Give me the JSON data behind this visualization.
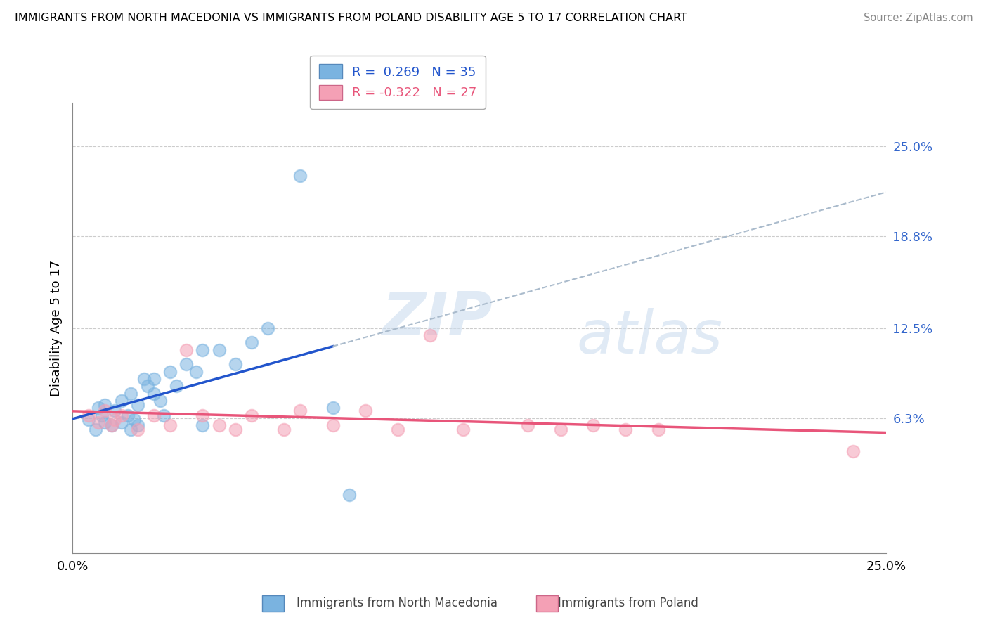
{
  "title": "IMMIGRANTS FROM NORTH MACEDONIA VS IMMIGRANTS FROM POLAND DISABILITY AGE 5 TO 17 CORRELATION CHART",
  "source": "Source: ZipAtlas.com",
  "ylabel": "Disability Age 5 to 17",
  "xlim": [
    0.0,
    0.25
  ],
  "ylim": [
    -0.03,
    0.28
  ],
  "ytick_labels": [
    "6.3%",
    "12.5%",
    "18.8%",
    "25.0%"
  ],
  "ytick_values": [
    0.063,
    0.125,
    0.188,
    0.25
  ],
  "r_mac": 0.269,
  "n_mac": 35,
  "r_pol": -0.322,
  "n_pol": 27,
  "color_mac": "#7ab3e0",
  "color_pol": "#f4a0b5",
  "line_color_mac": "#2255cc",
  "line_color_pol": "#e8557a",
  "watermark": "ZIPatlas",
  "background_color": "#ffffff",
  "grid_color": "#cccccc",
  "mac_scatter_x": [
    0.005,
    0.007,
    0.008,
    0.009,
    0.01,
    0.01,
    0.012,
    0.013,
    0.015,
    0.015,
    0.017,
    0.018,
    0.018,
    0.019,
    0.02,
    0.02,
    0.022,
    0.023,
    0.025,
    0.025,
    0.027,
    0.028,
    0.03,
    0.032,
    0.035,
    0.038,
    0.04,
    0.045,
    0.05,
    0.055,
    0.06,
    0.07,
    0.08,
    0.085,
    0.04
  ],
  "mac_scatter_y": [
    0.062,
    0.055,
    0.07,
    0.065,
    0.06,
    0.072,
    0.058,
    0.068,
    0.075,
    0.06,
    0.065,
    0.08,
    0.055,
    0.062,
    0.072,
    0.058,
    0.09,
    0.085,
    0.09,
    0.08,
    0.075,
    0.065,
    0.095,
    0.085,
    0.1,
    0.095,
    0.11,
    0.11,
    0.1,
    0.115,
    0.125,
    0.23,
    0.07,
    0.01,
    0.058
  ],
  "pol_scatter_x": [
    0.005,
    0.008,
    0.01,
    0.012,
    0.013,
    0.015,
    0.02,
    0.025,
    0.03,
    0.035,
    0.04,
    0.045,
    0.05,
    0.055,
    0.065,
    0.07,
    0.08,
    0.09,
    0.1,
    0.11,
    0.12,
    0.14,
    0.15,
    0.16,
    0.17,
    0.18,
    0.24
  ],
  "pol_scatter_y": [
    0.065,
    0.06,
    0.068,
    0.058,
    0.062,
    0.065,
    0.055,
    0.065,
    0.058,
    0.11,
    0.065,
    0.058,
    0.055,
    0.065,
    0.055,
    0.068,
    0.058,
    0.068,
    0.055,
    0.12,
    0.055,
    0.058,
    0.055,
    0.058,
    0.055,
    0.055,
    0.04
  ]
}
